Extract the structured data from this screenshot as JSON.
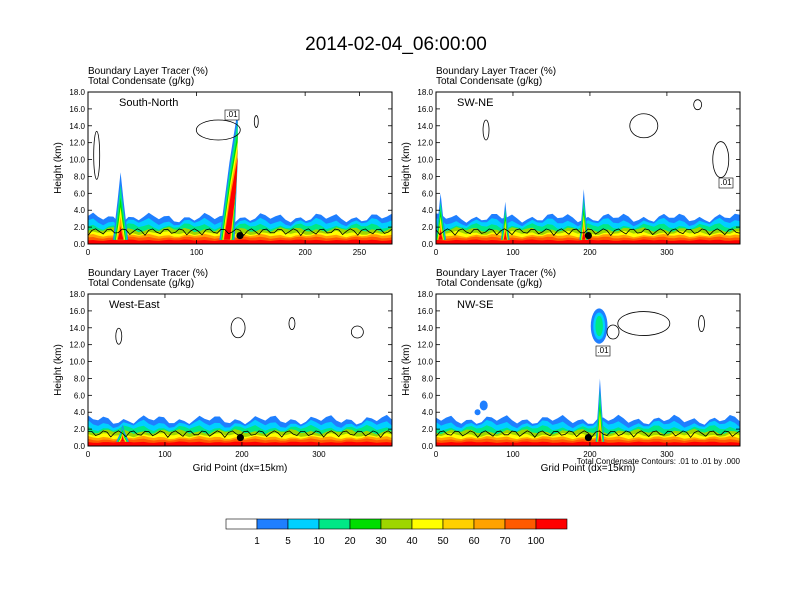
{
  "figure_title": "2014-02-04_06:00:00",
  "colors": [
    "#ffffff",
    "#1f7fff",
    "#00d0ff",
    "#00e886",
    "#00dd00",
    "#9ed600",
    "#ffff00",
    "#ffd000",
    "#ffa200",
    "#ff5a00",
    "#ff0000"
  ],
  "chart_data": [
    {
      "type": "contour",
      "panel": "South-North",
      "header_line1": "Boundary Layer Tracer   (%)",
      "header_line2": "Total Condensate   (g/kg)",
      "ylabel": "Height (km)",
      "xlabel": "",
      "xlim": [
        0,
        280
      ],
      "ylim": [
        0,
        18
      ],
      "xticks": [
        "0",
        "100",
        "200"
      ],
      "xtick_values": [
        0,
        100,
        200
      ],
      "yticks": [
        "0.0",
        "2.0",
        "4.0",
        "6.0",
        "8.0",
        "10.0",
        "12.0",
        "14.0",
        "16.0",
        "18.0"
      ],
      "ytick_values": [
        0,
        2,
        4,
        6,
        8,
        10,
        12,
        14,
        16,
        18
      ],
      "extra_xticks": [
        "250"
      ],
      "extra_xtick_values": [
        250
      ],
      "marker": {
        "x": 140,
        "y": 1.0
      },
      "contour_label": ".01"
    },
    {
      "type": "contour",
      "panel": "SW-NE",
      "header_line1": "Boundary Layer Tracer   (%)",
      "header_line2": "Total Condensate   (g/kg)",
      "ylabel": "Height (km)",
      "xlabel": "",
      "xlim": [
        0,
        395
      ],
      "ylim": [
        0,
        18
      ],
      "xticks": [
        "0",
        "100",
        "200",
        "300"
      ],
      "xtick_values": [
        0,
        100,
        200,
        300
      ],
      "yticks": [
        "0.0",
        "2.0",
        "4.0",
        "6.0",
        "8.0",
        "10.0",
        "12.0",
        "14.0",
        "16.0",
        "18.0"
      ],
      "ytick_values": [
        0,
        2,
        4,
        6,
        8,
        10,
        12,
        14,
        16,
        18
      ],
      "marker": {
        "x": 198,
        "y": 1.0
      },
      "contour_label": ".01"
    },
    {
      "type": "contour",
      "panel": "West-East",
      "header_line1": "Boundary Layer Tracer   (%)",
      "header_line2": "Total Condensate   (g/kg)",
      "ylabel": "Height (km)",
      "xlabel": "Grid Point (dx=15km)",
      "xlim": [
        0,
        395
      ],
      "ylim": [
        0,
        18
      ],
      "xticks": [
        "0",
        "100",
        "200",
        "300"
      ],
      "xtick_values": [
        0,
        100,
        200,
        300
      ],
      "yticks": [
        "0.0",
        "2.0",
        "4.0",
        "6.0",
        "8.0",
        "10.0",
        "12.0",
        "14.0",
        "16.0",
        "18.0"
      ],
      "ytick_values": [
        0,
        2,
        4,
        6,
        8,
        10,
        12,
        14,
        16,
        18
      ],
      "marker": {
        "x": 198,
        "y": 1.0
      }
    },
    {
      "type": "contour",
      "panel": "NW-SE",
      "header_line1": "Boundary Layer Tracer   (%)",
      "header_line2": "Total Condensate   (g/kg)",
      "ylabel": "Height (km)",
      "xlabel": "Grid Point (dx=15km)",
      "xlim": [
        0,
        395
      ],
      "ylim": [
        0,
        18
      ],
      "xticks": [
        "0",
        "100",
        "200",
        "300"
      ],
      "xtick_values": [
        0,
        100,
        200,
        300
      ],
      "yticks": [
        "0.0",
        "2.0",
        "4.0",
        "6.0",
        "8.0",
        "10.0",
        "12.0",
        "14.0",
        "16.0",
        "18.0"
      ],
      "ytick_values": [
        0,
        2,
        4,
        6,
        8,
        10,
        12,
        14,
        16,
        18
      ],
      "marker": {
        "x": 198,
        "y": 1.0
      },
      "contour_label": ".01",
      "note": "Total Condensate Contours: .01 to .01 by .000"
    }
  ],
  "colorbar": {
    "labels": [
      "1",
      "5",
      "10",
      "20",
      "30",
      "40",
      "50",
      "60",
      "70",
      "100"
    ]
  }
}
